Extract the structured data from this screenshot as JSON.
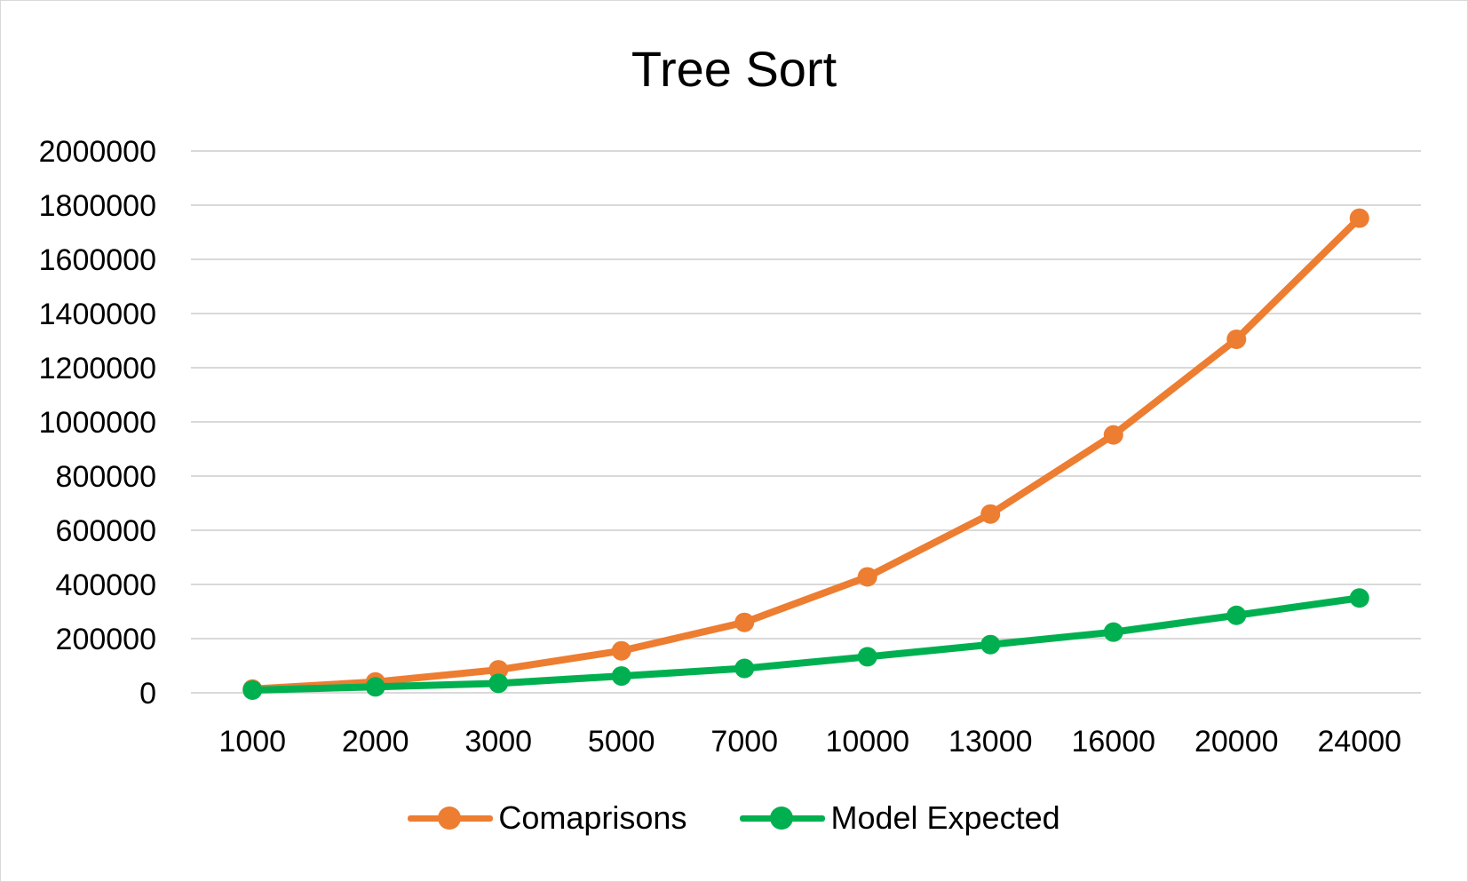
{
  "chart_data": {
    "type": "line",
    "title": "Tree Sort",
    "xlabel": "",
    "ylabel": "",
    "categories": [
      "1000",
      "2000",
      "3000",
      "5000",
      "7000",
      "10000",
      "13000",
      "16000",
      "20000",
      "24000"
    ],
    "ylim": [
      0,
      2000000
    ],
    "yticks": [
      "0",
      "200000",
      "400000",
      "600000",
      "800000",
      "1000000",
      "1200000",
      "1400000",
      "1600000",
      "1800000",
      "2000000"
    ],
    "grid": true,
    "legend_position": "bottom",
    "series": [
      {
        "name": "Comaprisons",
        "color": "#ed7d31",
        "values": [
          14000,
          40000,
          85000,
          155000,
          260000,
          428000,
          660000,
          952000,
          1305000,
          1752000
        ]
      },
      {
        "name": "Model Expected",
        "color": "#00b050",
        "values": [
          10000,
          22000,
          35000,
          62000,
          90000,
          133000,
          178000,
          224000,
          286000,
          350000
        ]
      }
    ]
  }
}
